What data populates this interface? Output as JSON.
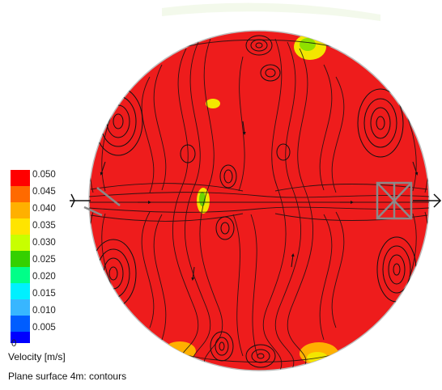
{
  "legend": {
    "title": "Velocity [m/s]",
    "ticks": [
      "0.050",
      "0.045",
      "0.040",
      "0.035",
      "0.030",
      "0.025",
      "0.020",
      "0.015",
      "0.010",
      "0.005",
      "0"
    ],
    "colors": [
      "#ff0000",
      "#ff6a00",
      "#ffb000",
      "#ffe400",
      "#c8ff00",
      "#34d000",
      "#00ff88",
      "#00f0ff",
      "#38b6ff",
      "#005dff",
      "#0000ff"
    ]
  },
  "caption": "Plane surface 4m: contours",
  "colors": {
    "field": "#ee1c1c",
    "streamline": "#111111",
    "outline": "#9a9a9a"
  }
}
